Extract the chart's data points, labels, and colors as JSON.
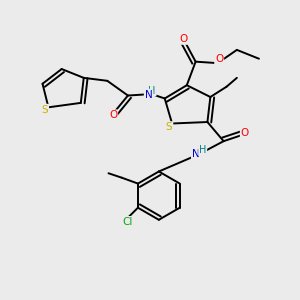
{
  "background_color": "#ebebeb",
  "atom_colors": {
    "S": "#c8b400",
    "O": "#ff0000",
    "N": "#0000cd",
    "C": "#000000",
    "H": "#008080",
    "Cl": "#00aa00"
  },
  "bond_color": "#000000",
  "bond_width": 1.4,
  "figure_size": [
    3.0,
    3.0
  ],
  "dpi": 100
}
